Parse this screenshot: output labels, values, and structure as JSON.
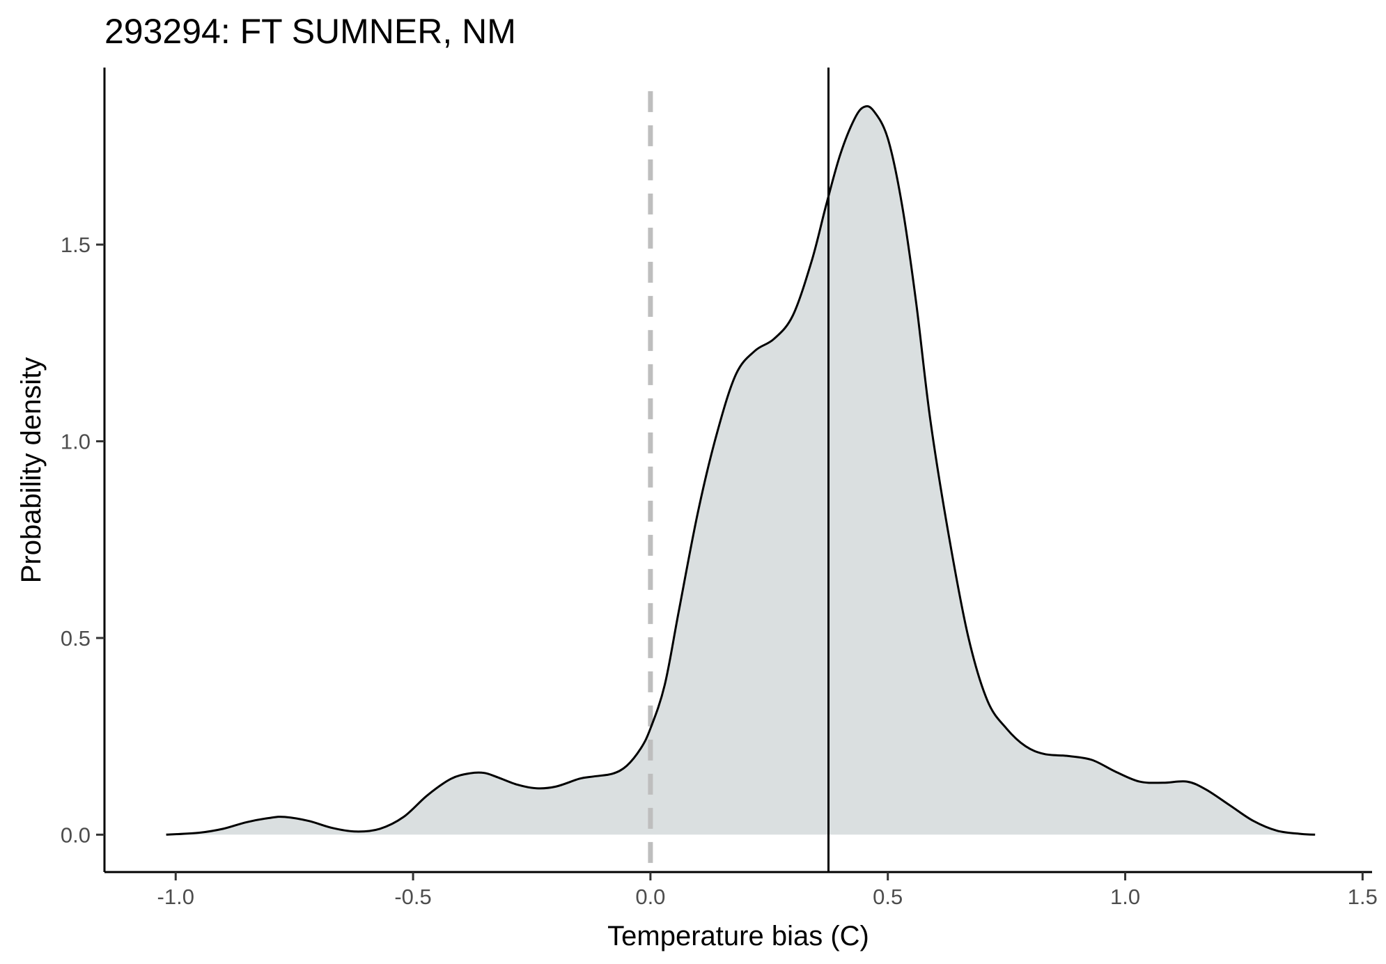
{
  "chart_data": {
    "type": "area",
    "title": "293294: FT SUMNER, NM",
    "xlabel": "Temperature bias (C)",
    "ylabel": "Probability density",
    "xlim": [
      -1.15,
      1.52
    ],
    "ylim": [
      -0.095,
      1.95
    ],
    "xticks": [
      -1.0,
      -0.5,
      0.0,
      0.5,
      1.0,
      1.5
    ],
    "xtick_labels": [
      "-1.0",
      "-0.5",
      "0.0",
      "0.5",
      "1.0",
      "1.5"
    ],
    "yticks": [
      0.0,
      0.5,
      1.0,
      1.5
    ],
    "ytick_labels": [
      "0.0",
      "0.5",
      "1.0",
      "1.5"
    ],
    "grid": false,
    "reference_lines": [
      {
        "x": 0.0,
        "style": "dashed",
        "color": "#bebebe"
      },
      {
        "x": 0.375,
        "style": "solid",
        "color": "#000000"
      }
    ],
    "fill_color": "#dadfe0",
    "line_color": "#000000",
    "series": [
      {
        "x": [
          -1.02,
          -0.95,
          -0.9,
          -0.85,
          -0.8,
          -0.77,
          -0.72,
          -0.67,
          -0.62,
          -0.57,
          -0.52,
          -0.47,
          -0.42,
          -0.38,
          -0.35,
          -0.32,
          -0.28,
          -0.24,
          -0.2,
          -0.15,
          -0.12,
          -0.08,
          -0.05,
          -0.02,
          0.0,
          0.03,
          0.06,
          0.1,
          0.14,
          0.18,
          0.22,
          0.26,
          0.3,
          0.34,
          0.37,
          0.4,
          0.43,
          0.45,
          0.47,
          0.5,
          0.53,
          0.56,
          0.59,
          0.63,
          0.67,
          0.71,
          0.75,
          0.79,
          0.83,
          0.88,
          0.93,
          0.98,
          1.03,
          1.08,
          1.13,
          1.17,
          1.22,
          1.27,
          1.32,
          1.37,
          1.4
        ],
        "y": [
          0.0,
          0.005,
          0.015,
          0.032,
          0.043,
          0.045,
          0.035,
          0.017,
          0.008,
          0.015,
          0.045,
          0.1,
          0.142,
          0.156,
          0.157,
          0.145,
          0.127,
          0.118,
          0.122,
          0.142,
          0.148,
          0.155,
          0.175,
          0.22,
          0.27,
          0.38,
          0.57,
          0.82,
          1.02,
          1.17,
          1.23,
          1.26,
          1.32,
          1.46,
          1.6,
          1.73,
          1.82,
          1.85,
          1.84,
          1.77,
          1.6,
          1.35,
          1.05,
          0.75,
          0.5,
          0.34,
          0.27,
          0.225,
          0.205,
          0.2,
          0.19,
          0.16,
          0.135,
          0.132,
          0.135,
          0.115,
          0.075,
          0.035,
          0.01,
          0.002,
          0.0
        ]
      }
    ]
  }
}
